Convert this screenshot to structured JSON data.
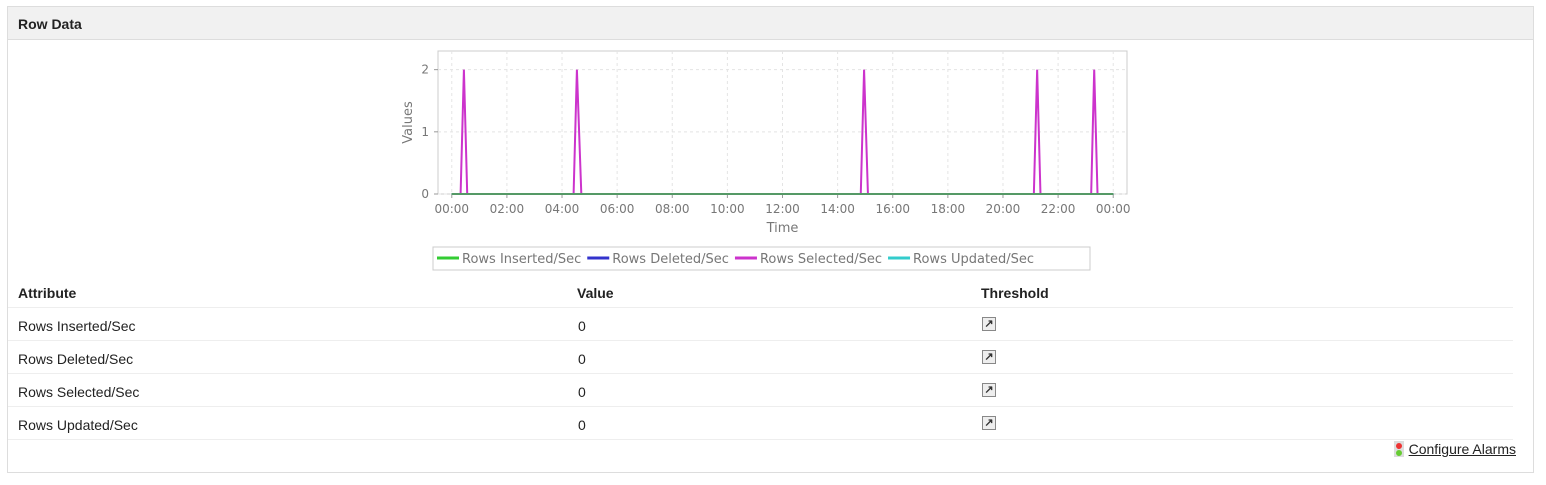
{
  "panel": {
    "title": "Row Data"
  },
  "chart_data": {
    "type": "line",
    "xlabel": "Time",
    "ylabel": "Values",
    "x_ticks": [
      "00:00",
      "02:00",
      "04:00",
      "06:00",
      "08:00",
      "10:00",
      "12:00",
      "14:00",
      "16:00",
      "18:00",
      "20:00",
      "22:00",
      "00:00"
    ],
    "y_ticks": [
      "0",
      "1",
      "2"
    ],
    "ylim": [
      0,
      2.3
    ],
    "xlim_hours": [
      -0.5,
      24.5
    ],
    "grid": true,
    "legend": "bottom",
    "series": [
      {
        "name": "Rows Inserted/Sec",
        "color": "#33cc33",
        "points": [
          [
            0,
            0
          ],
          [
            24,
            0
          ]
        ]
      },
      {
        "name": "Rows Deleted/Sec",
        "color": "#3333cc",
        "points": [
          [
            0,
            0
          ],
          [
            24,
            0
          ]
        ]
      },
      {
        "name": "Rows Selected/Sec",
        "color": "#cc33cc",
        "points": [
          [
            0,
            0
          ],
          [
            0.32,
            0
          ],
          [
            0.44,
            2
          ],
          [
            0.56,
            0
          ],
          [
            4.42,
            0
          ],
          [
            4.54,
            2
          ],
          [
            4.7,
            0
          ],
          [
            14.84,
            0
          ],
          [
            14.96,
            2
          ],
          [
            15.1,
            0
          ],
          [
            21.12,
            0
          ],
          [
            21.24,
            2
          ],
          [
            21.36,
            0
          ],
          [
            23.2,
            0
          ],
          [
            23.31,
            2
          ],
          [
            23.43,
            0
          ],
          [
            24,
            0
          ]
        ]
      },
      {
        "name": "Rows Updated/Sec",
        "color": "#33cccc",
        "points": [
          [
            0,
            0
          ],
          [
            24,
            0
          ]
        ]
      }
    ]
  },
  "table": {
    "headers": [
      "Attribute",
      "Value",
      "Threshold"
    ],
    "rows": [
      {
        "attribute": "Rows Inserted/Sec",
        "value": "0"
      },
      {
        "attribute": "Rows Deleted/Sec",
        "value": "0"
      },
      {
        "attribute": "Rows Selected/Sec",
        "value": "0"
      },
      {
        "attribute": "Rows Updated/Sec",
        "value": "0"
      }
    ],
    "threshold_icon": "edit-threshold-icon"
  },
  "configure_alarms": "Configure Alarms"
}
